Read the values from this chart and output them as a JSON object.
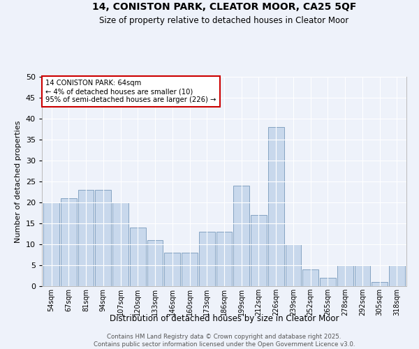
{
  "title1": "14, CONISTON PARK, CLEATOR MOOR, CA25 5QF",
  "title2": "Size of property relative to detached houses in Cleator Moor",
  "xlabel": "Distribution of detached houses by size in Cleator Moor",
  "ylabel": "Number of detached properties",
  "categories": [
    "54sqm",
    "67sqm",
    "81sqm",
    "94sqm",
    "107sqm",
    "120sqm",
    "133sqm",
    "146sqm",
    "160sqm",
    "173sqm",
    "186sqm",
    "199sqm",
    "212sqm",
    "226sqm",
    "239sqm",
    "252sqm",
    "265sqm",
    "278sqm",
    "292sqm",
    "305sqm",
    "318sqm"
  ],
  "values": [
    20,
    21,
    23,
    23,
    20,
    14,
    11,
    8,
    8,
    13,
    13,
    24,
    17,
    38,
    10,
    4,
    2,
    5,
    5,
    1,
    5
  ],
  "bar_color": "#c8d8ec",
  "bar_edge_color": "#7799bb",
  "background_color": "#eef2fa",
  "grid_color": "#ffffff",
  "annotation_text": "14 CONISTON PARK: 64sqm\n← 4% of detached houses are smaller (10)\n95% of semi-detached houses are larger (226) →",
  "annotation_box_color": "#ffffff",
  "annotation_box_edge": "#cc0000",
  "ylim": [
    0,
    50
  ],
  "yticks": [
    0,
    5,
    10,
    15,
    20,
    25,
    30,
    35,
    40,
    45,
    50
  ],
  "footer": "Contains HM Land Registry data © Crown copyright and database right 2025.\nContains public sector information licensed under the Open Government Licence v3.0."
}
